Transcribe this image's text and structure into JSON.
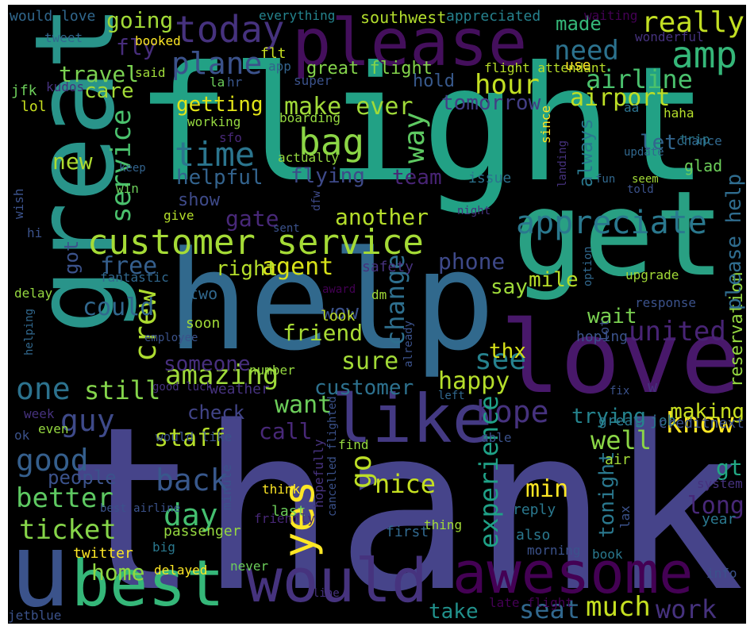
{
  "colors": {
    "background": "#000000",
    "palette": [
      "#440154",
      "#46327e",
      "#365c8d",
      "#277f8e",
      "#1fa187",
      "#4ac16d",
      "#a0da39",
      "#fde725"
    ]
  },
  "words": [
    {
      "text": "thank",
      "color": "#46448a"
    },
    {
      "text": "flight",
      "color": "#22a185"
    },
    {
      "text": "help",
      "color": "#31698d"
    },
    {
      "text": "great",
      "color": "#29948a"
    },
    {
      "text": "get",
      "color": "#29a083"
    },
    {
      "text": "love",
      "color": "#48186a"
    },
    {
      "text": "please",
      "color": "#440f5c"
    },
    {
      "text": "u",
      "color": "#3b538b"
    },
    {
      "text": "best",
      "color": "#35b779"
    },
    {
      "text": "awesome",
      "color": "#440154"
    },
    {
      "text": "would",
      "color": "#46337e"
    },
    {
      "text": "like",
      "color": "#443a83"
    },
    {
      "text": "customer service",
      "color": "#a5db36"
    },
    {
      "text": "appreciate",
      "color": "#2a788e"
    },
    {
      "text": "today",
      "color": "#46327e"
    },
    {
      "text": "amp",
      "color": "#35b779"
    },
    {
      "text": "time",
      "color": "#2b758e"
    },
    {
      "text": "amazing",
      "color": "#9fda3a"
    },
    {
      "text": "united",
      "color": "#482475"
    },
    {
      "text": "bag",
      "color": "#8cd646"
    },
    {
      "text": "hour",
      "color": "#c2df23"
    },
    {
      "text": "airline",
      "color": "#4ac16d"
    },
    {
      "text": "plane",
      "color": "#3b528b"
    },
    {
      "text": "really",
      "color": "#c2df23"
    },
    {
      "text": "need",
      "color": "#2c728e"
    },
    {
      "text": "good",
      "color": "#355f8d"
    },
    {
      "text": "ticket",
      "color": "#86d549"
    },
    {
      "text": "better",
      "color": "#5ec962"
    },
    {
      "text": "back",
      "color": "#38588c"
    },
    {
      "text": "day",
      "color": "#44bf70"
    },
    {
      "text": "still",
      "color": "#84d44b"
    },
    {
      "text": "one",
      "color": "#2c728e"
    },
    {
      "text": "guy",
      "color": "#3e4a89"
    },
    {
      "text": "know",
      "color": "#fde725"
    },
    {
      "text": "hope",
      "color": "#46327e"
    },
    {
      "text": "want",
      "color": "#6ccd5a"
    },
    {
      "text": "well",
      "color": "#8bd646"
    },
    {
      "text": "see",
      "color": "#26828e"
    },
    {
      "text": "sure",
      "color": "#a2da37"
    },
    {
      "text": "happy",
      "color": "#b5de2b"
    },
    {
      "text": "yes",
      "color": "#fde725"
    },
    {
      "text": "nice",
      "color": "#c5e021"
    },
    {
      "text": "much",
      "color": "#c5e021"
    },
    {
      "text": "seat",
      "color": "#31688e"
    },
    {
      "text": "work",
      "color": "#46327e"
    },
    {
      "text": "take",
      "color": "#21918c"
    },
    {
      "text": "home",
      "color": "#90d743"
    },
    {
      "text": "experience",
      "color": "#1fa187"
    },
    {
      "text": "tonight",
      "color": "#2a788e"
    },
    {
      "text": "long",
      "color": "#482878"
    },
    {
      "text": "min",
      "color": "#fde725"
    },
    {
      "text": "gt",
      "color": "#22a884"
    },
    {
      "text": "trying",
      "color": "#25848e"
    },
    {
      "text": "making",
      "color": "#c8e020"
    },
    {
      "text": "free",
      "color": "#355f8d"
    },
    {
      "text": "agent",
      "color": "#d8e219"
    },
    {
      "text": "right",
      "color": "#b5de2b"
    },
    {
      "text": "phone",
      "color": "#3e4989"
    },
    {
      "text": "mile",
      "color": "#b8de29"
    },
    {
      "text": "say",
      "color": "#9fda3a"
    },
    {
      "text": "wait",
      "color": "#7ad151"
    },
    {
      "text": "crew",
      "color": "#addc30"
    },
    {
      "text": "could",
      "color": "#31688e"
    },
    {
      "text": "friend",
      "color": "#a8db34"
    },
    {
      "text": "wow",
      "color": "#3b528b"
    },
    {
      "text": "change",
      "color": "#2e6f8e"
    },
    {
      "text": "thx",
      "color": "#d8e219"
    },
    {
      "text": "someone",
      "color": "#472f7d"
    },
    {
      "text": "customer",
      "color": "#2d718e"
    },
    {
      "text": "check",
      "color": "#414487"
    },
    {
      "text": "staff",
      "color": "#b5de2b"
    },
    {
      "text": "call",
      "color": "#482878"
    },
    {
      "text": "people",
      "color": "#3b528b"
    },
    {
      "text": "go",
      "color": "#bddf26"
    },
    {
      "text": "reservation",
      "color": "#95d840"
    },
    {
      "text": "please help",
      "color": "#2f6c8e"
    },
    {
      "text": "service",
      "color": "#4ac16d"
    },
    {
      "text": "new",
      "color": "#addc30"
    },
    {
      "text": "helpful",
      "color": "#33638d"
    },
    {
      "text": "flying",
      "color": "#3e4a89"
    },
    {
      "text": "way",
      "color": "#5ec962"
    },
    {
      "text": "team",
      "color": "#482475"
    },
    {
      "text": "show",
      "color": "#3e4a89"
    },
    {
      "text": "gate",
      "color": "#482878"
    },
    {
      "text": "another",
      "color": "#b5de2b"
    },
    {
      "text": "got",
      "color": "#3b528b"
    },
    {
      "text": "make ever",
      "color": "#a0da39"
    },
    {
      "text": "getting",
      "color": "#e2e418"
    },
    {
      "text": "tomorrow",
      "color": "#433e85"
    },
    {
      "text": "airport",
      "color": "#bddf26"
    },
    {
      "text": "let",
      "color": "#32658e"
    },
    {
      "text": "always",
      "color": "#2a788e"
    },
    {
      "text": "hold",
      "color": "#38598c"
    },
    {
      "text": "made",
      "color": "#35b779"
    },
    {
      "text": "fly",
      "color": "#472d7b"
    },
    {
      "text": "going",
      "color": "#a2da37"
    },
    {
      "text": "travel",
      "color": "#7ad151"
    },
    {
      "text": "care",
      "color": "#a2da37"
    },
    {
      "text": "great flight",
      "color": "#84d44b"
    },
    {
      "text": "southwest",
      "color": "#b2dd2d"
    },
    {
      "text": "appreciated",
      "color": "#26828e"
    },
    {
      "text": "waiting",
      "color": "#440154"
    },
    {
      "text": "everything",
      "color": "#25848e"
    },
    {
      "text": "would love",
      "color": "#31688e"
    },
    {
      "text": "booked",
      "color": "#fde725"
    },
    {
      "text": "tweet",
      "color": "#31688e"
    },
    {
      "text": "said",
      "color": "#9fda3a"
    },
    {
      "text": "flt",
      "color": "#c8e020"
    },
    {
      "text": "app",
      "color": "#33638d"
    },
    {
      "text": "super",
      "color": "#3b528b"
    },
    {
      "text": "flight attendant",
      "color": "#b8de29"
    },
    {
      "text": "use",
      "color": "#fde725"
    },
    {
      "text": "wonderful",
      "color": "#46327e"
    },
    {
      "text": "kudos",
      "color": "#46327e"
    },
    {
      "text": "jfk",
      "color": "#6ccd5a"
    },
    {
      "text": "lol",
      "color": "#c8e020"
    },
    {
      "text": "la",
      "color": "#6ccd5a"
    },
    {
      "text": "hr",
      "color": "#39568c"
    },
    {
      "text": "aa",
      "color": "#2c728e"
    },
    {
      "text": "haha",
      "color": "#b5de2b"
    },
    {
      "text": "chance",
      "color": "#31688e"
    },
    {
      "text": "working",
      "color": "#95d840"
    },
    {
      "text": "boarding",
      "color": "#95d840"
    },
    {
      "text": "sfo",
      "color": "#482878"
    },
    {
      "text": "trip",
      "color": "#2a788e"
    },
    {
      "text": "keep",
      "color": "#33638d"
    },
    {
      "text": "win",
      "color": "#6ccd5a"
    },
    {
      "text": "actually",
      "color": "#95d840"
    },
    {
      "text": "issue",
      "color": "#2c728e"
    },
    {
      "text": "fun",
      "color": "#31688e"
    },
    {
      "text": "update",
      "color": "#31688e"
    },
    {
      "text": "since",
      "color": "#fde725"
    },
    {
      "text": "landing",
      "color": "#46327e"
    },
    {
      "text": "glad",
      "color": "#6ccd5a"
    },
    {
      "text": "seem",
      "color": "#a2da37"
    },
    {
      "text": "told",
      "color": "#3b528b"
    },
    {
      "text": "wish",
      "color": "#3b528b"
    },
    {
      "text": "give",
      "color": "#b5de2b"
    },
    {
      "text": "sent",
      "color": "#3b528b"
    },
    {
      "text": "dfw",
      "color": "#3e4a89"
    },
    {
      "text": "night",
      "color": "#46327e"
    },
    {
      "text": "hi",
      "color": "#3b528b"
    },
    {
      "text": "fantastic",
      "color": "#31688e"
    },
    {
      "text": "safety",
      "color": "#46327e"
    },
    {
      "text": "award",
      "color": "#440154"
    },
    {
      "text": "option",
      "color": "#31688e"
    },
    {
      "text": "upgrade",
      "color": "#a2da37"
    },
    {
      "text": "delay",
      "color": "#95d840"
    },
    {
      "text": "two",
      "color": "#31688e"
    },
    {
      "text": "dm",
      "color": "#a2da37"
    },
    {
      "text": "response",
      "color": "#3b528b"
    },
    {
      "text": "soon",
      "color": "#a2da37"
    },
    {
      "text": "look",
      "color": "#bddf26"
    },
    {
      "text": "employee",
      "color": "#3b528b"
    },
    {
      "text": "hoping",
      "color": "#3b528b"
    },
    {
      "text": "lot",
      "color": "#3b528b"
    },
    {
      "text": "helping",
      "color": "#31688e"
    },
    {
      "text": "number",
      "color": "#95d840"
    },
    {
      "text": "already",
      "color": "#3b528b"
    },
    {
      "text": "good luck",
      "color": "#46327e"
    },
    {
      "text": "weather",
      "color": "#46327e"
    },
    {
      "text": "left",
      "color": "#31688e"
    },
    {
      "text": "fix",
      "color": "#3b528b"
    },
    {
      "text": "w",
      "color": "#46327e"
    },
    {
      "text": "week",
      "color": "#46327e"
    },
    {
      "text": "even",
      "color": "#95d840"
    },
    {
      "text": "ok",
      "color": "#3b528b"
    },
    {
      "text": "would like",
      "color": "#3b528b"
    },
    {
      "text": "find",
      "color": "#95d840"
    },
    {
      "text": "able",
      "color": "#3b528b"
    },
    {
      "text": "great job",
      "color": "#2a788e"
    },
    {
      "text": "creditnext",
      "color": "#3b528b"
    },
    {
      "text": "air",
      "color": "#a2da37"
    },
    {
      "text": "best airline",
      "color": "#3b528b"
    },
    {
      "text": "passenger",
      "color": "#95d840"
    },
    {
      "text": "think",
      "color": "#fde725"
    },
    {
      "text": "last",
      "color": "#6ccd5a"
    },
    {
      "text": "friendly",
      "color": "#482878"
    },
    {
      "text": "reply",
      "color": "#2a788e"
    },
    {
      "text": "system",
      "color": "#46327e"
    },
    {
      "text": "year",
      "color": "#2a788e"
    },
    {
      "text": "twitter",
      "color": "#fde725"
    },
    {
      "text": "big",
      "color": "#2a788e"
    },
    {
      "text": "minute",
      "color": "#3b528b"
    },
    {
      "text": "hopefully",
      "color": "#46327e"
    },
    {
      "text": "cancelled flighted",
      "color": "#3b528b"
    },
    {
      "text": "thing",
      "color": "#a2da37"
    },
    {
      "text": "first",
      "color": "#31688e"
    },
    {
      "text": "also",
      "color": "#2a788e"
    },
    {
      "text": "morning",
      "color": "#3b528b"
    },
    {
      "text": "book",
      "color": "#2a788e"
    },
    {
      "text": "lax",
      "color": "#3b528b"
    },
    {
      "text": "delayed",
      "color": "#fde725"
    },
    {
      "text": "never",
      "color": "#6ccd5a"
    },
    {
      "text": "line",
      "color": "#46327e"
    },
    {
      "text": "info",
      "color": "#3b528b"
    },
    {
      "text": "late flight",
      "color": "#440154"
    },
    {
      "text": "jetblue",
      "color": "#3b528b"
    }
  ]
}
